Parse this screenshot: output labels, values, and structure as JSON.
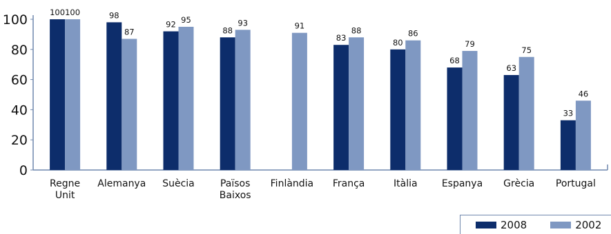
{
  "chart_data": {
    "type": "bar",
    "categories": [
      [
        "Regne",
        "Unit"
      ],
      [
        "Alemanya"
      ],
      [
        "Suècia"
      ],
      [
        "Països",
        "Baixos"
      ],
      [
        "Finlàndia"
      ],
      [
        "França"
      ],
      [
        "Itàlia"
      ],
      [
        "Espanya"
      ],
      [
        "Grècia"
      ],
      [
        "Portugal"
      ]
    ],
    "series": [
      {
        "name": "2008",
        "color": "#0d2d6b",
        "values": [
          100,
          98,
          92,
          88,
          null,
          83,
          80,
          68,
          63,
          33
        ]
      },
      {
        "name": "2002",
        "color": "#7f98c2",
        "values": [
          100,
          87,
          95,
          93,
          91,
          88,
          86,
          79,
          75,
          46
        ]
      }
    ],
    "ylim": [
      0,
      100
    ],
    "yticks": [
      0,
      20,
      40,
      60,
      80,
      100
    ],
    "grid": false,
    "legend": "bottom-right"
  }
}
